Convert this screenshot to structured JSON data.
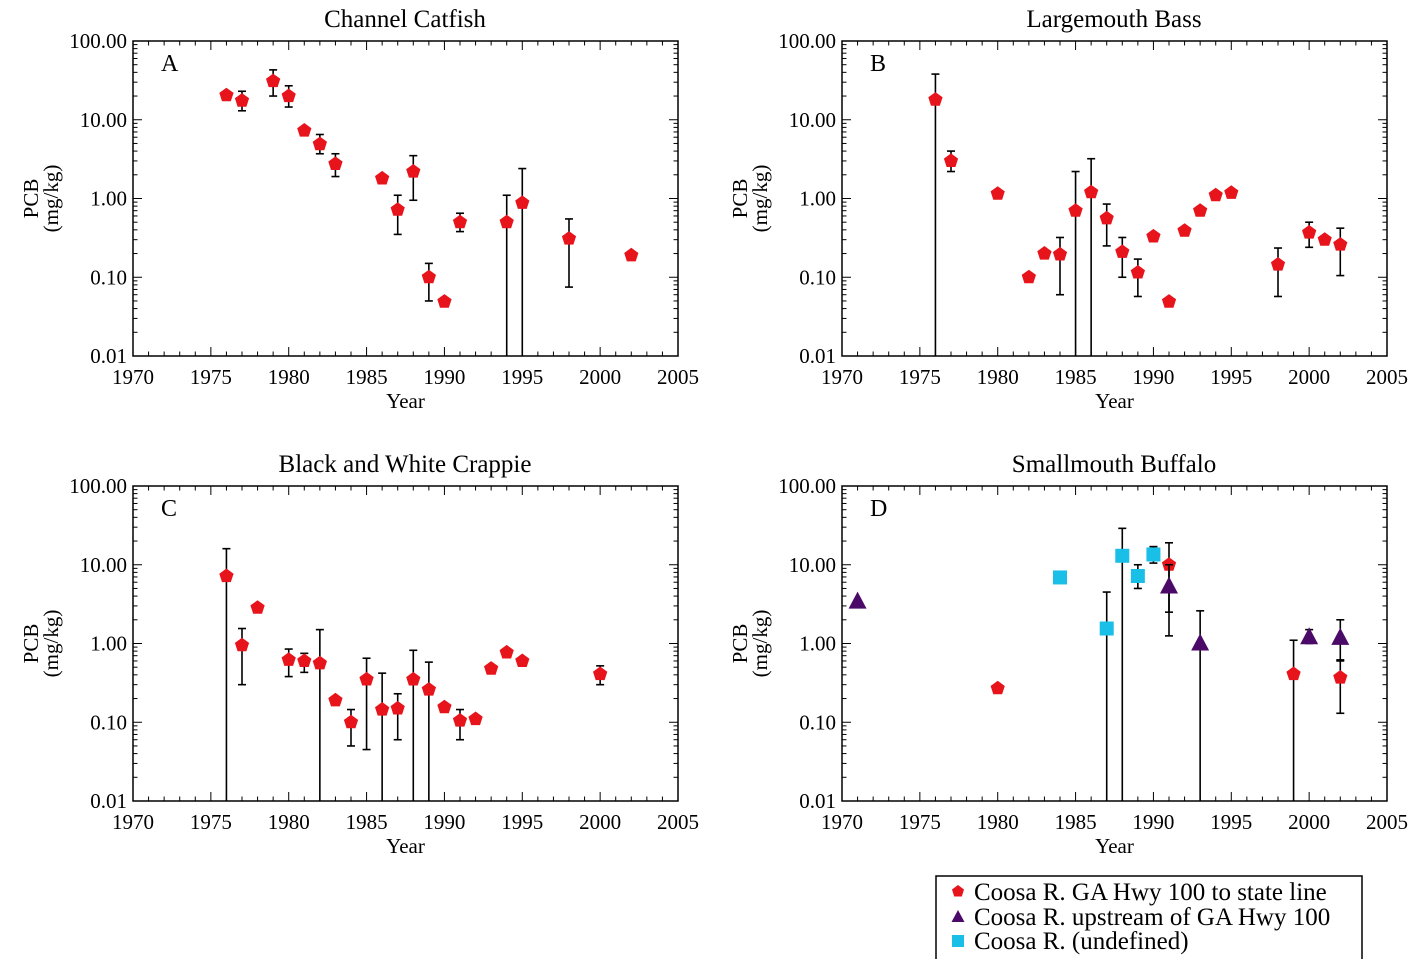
{
  "colors": {
    "series_red": "#e8141c",
    "series_purple": "#4b0a68",
    "series_cyan": "#19bfe6",
    "axes": "#000000"
  },
  "legend": {
    "placement": "bottom-right",
    "entries": [
      {
        "label": "Coosa R. GA Hwy 100 to state line",
        "marker": "pentagon",
        "color": "#e8141c"
      },
      {
        "label": "Coosa R. upstream of GA Hwy 100",
        "marker": "triangle",
        "color": "#4b0a68"
      },
      {
        "label": "Coosa R. (undefined)",
        "marker": "square",
        "color": "#19bfe6"
      }
    ]
  },
  "chart_data": [
    {
      "type": "scatter",
      "title": "Channel Catfish",
      "panel_label": "A",
      "xlabel": "Year",
      "ylabel": "PCB",
      "ylabel_units": "(mg/kg)",
      "xlim": [
        1970,
        2005
      ],
      "ylim": [
        0.01,
        100
      ],
      "y_scale": "log",
      "xticks": [
        "1970",
        "1975",
        "1980",
        "1985",
        "1990",
        "1995",
        "2000",
        "2005"
      ],
      "yticks": [
        "0.01",
        "0.10",
        "1.00",
        "10.00",
        "100.00"
      ],
      "series": [
        {
          "marker": "pentagon",
          "color": "#e8141c",
          "points": [
            {
              "x": 1976,
              "y": 20.5
            },
            {
              "x": 1977,
              "y": 17.5,
              "lo": 13,
              "hi": 23
            },
            {
              "x": 1979,
              "y": 31,
              "lo": 20,
              "hi": 43
            },
            {
              "x": 1980,
              "y": 20,
              "lo": 14.5,
              "hi": 27
            },
            {
              "x": 1981,
              "y": 7.3
            },
            {
              "x": 1982,
              "y": 4.9,
              "lo": 3.7,
              "hi": 6.5
            },
            {
              "x": 1983,
              "y": 2.75,
              "lo": 1.9,
              "hi": 3.7
            },
            {
              "x": 1986,
              "y": 1.8
            },
            {
              "x": 1987,
              "y": 0.72,
              "lo": 0.35,
              "hi": 1.1
            },
            {
              "x": 1988,
              "y": 2.2,
              "lo": 0.95,
              "hi": 3.5
            },
            {
              "x": 1989,
              "y": 0.1,
              "lo": 0.05,
              "hi": 0.15
            },
            {
              "x": 1990,
              "y": 0.049
            },
            {
              "x": 1991,
              "y": 0.5,
              "lo": 0.38,
              "hi": 0.65
            },
            {
              "x": 1994,
              "y": 0.5,
              "lo": 0.01,
              "hi": 1.1
            },
            {
              "x": 1995,
              "y": 0.88,
              "lo": 0.01,
              "hi": 2.4
            },
            {
              "x": 1998,
              "y": 0.31,
              "lo": 0.075,
              "hi": 0.55
            },
            {
              "x": 2002,
              "y": 0.19
            }
          ]
        }
      ]
    },
    {
      "type": "scatter",
      "title": "Largemouth Bass",
      "panel_label": "B",
      "xlabel": "Year",
      "ylabel": "PCB",
      "ylabel_units": "(mg/kg)",
      "xlim": [
        1970,
        2005
      ],
      "ylim": [
        0.01,
        100
      ],
      "y_scale": "log",
      "xticks": [
        "1970",
        "1975",
        "1980",
        "1985",
        "1990",
        "1995",
        "2000",
        "2005"
      ],
      "yticks": [
        "0.01",
        "0.10",
        "1.00",
        "10.00",
        "100.00"
      ],
      "series": [
        {
          "marker": "pentagon",
          "color": "#e8141c",
          "points": [
            {
              "x": 1976,
              "y": 18,
              "lo": 0.01,
              "hi": 38
            },
            {
              "x": 1977,
              "y": 3.0,
              "lo": 2.2,
              "hi": 4.0
            },
            {
              "x": 1980,
              "y": 1.15
            },
            {
              "x": 1982,
              "y": 0.1
            },
            {
              "x": 1983,
              "y": 0.2
            },
            {
              "x": 1984,
              "y": 0.195,
              "lo": 0.06,
              "hi": 0.32
            },
            {
              "x": 1985,
              "y": 0.7,
              "lo": 0.01,
              "hi": 2.2
            },
            {
              "x": 1986,
              "y": 1.2,
              "lo": 0.01,
              "hi": 3.2
            },
            {
              "x": 1987,
              "y": 0.56,
              "lo": 0.25,
              "hi": 0.85
            },
            {
              "x": 1988,
              "y": 0.21,
              "lo": 0.1,
              "hi": 0.32
            },
            {
              "x": 1989,
              "y": 0.115,
              "lo": 0.057,
              "hi": 0.17
            },
            {
              "x": 1990,
              "y": 0.33
            },
            {
              "x": 1991,
              "y": 0.049
            },
            {
              "x": 1992,
              "y": 0.39
            },
            {
              "x": 1993,
              "y": 0.7
            },
            {
              "x": 1994,
              "y": 1.1
            },
            {
              "x": 1995,
              "y": 1.18
            },
            {
              "x": 1998,
              "y": 0.145,
              "lo": 0.057,
              "hi": 0.235
            },
            {
              "x": 2000,
              "y": 0.37,
              "lo": 0.24,
              "hi": 0.5
            },
            {
              "x": 2001,
              "y": 0.3
            },
            {
              "x": 2002,
              "y": 0.26,
              "lo": 0.105,
              "hi": 0.42
            }
          ]
        }
      ]
    },
    {
      "type": "scatter",
      "title": "Black and White Crappie",
      "panel_label": "C",
      "xlabel": "Year",
      "ylabel": "PCB",
      "ylabel_units": "(mg/kg)",
      "xlim": [
        1970,
        2005
      ],
      "ylim": [
        0.01,
        100
      ],
      "y_scale": "log",
      "xticks": [
        "1970",
        "1975",
        "1980",
        "1985",
        "1990",
        "1995",
        "2000",
        "2005"
      ],
      "yticks": [
        "0.01",
        "0.10",
        "1.00",
        "10.00",
        "100.00"
      ],
      "series": [
        {
          "marker": "pentagon",
          "color": "#e8141c",
          "points": [
            {
              "x": 1976,
              "y": 7.2,
              "lo": 0.01,
              "hi": 16
            },
            {
              "x": 1977,
              "y": 0.95,
              "lo": 0.3,
              "hi": 1.55
            },
            {
              "x": 1978,
              "y": 2.85
            },
            {
              "x": 1980,
              "y": 0.62,
              "lo": 0.38,
              "hi": 0.85
            },
            {
              "x": 1981,
              "y": 0.6,
              "lo": 0.43,
              "hi": 0.75
            },
            {
              "x": 1982,
              "y": 0.56,
              "lo": 0.01,
              "hi": 1.5
            },
            {
              "x": 1983,
              "y": 0.19
            },
            {
              "x": 1984,
              "y": 0.1,
              "lo": 0.05,
              "hi": 0.145
            },
            {
              "x": 1985,
              "y": 0.35,
              "lo": 0.045,
              "hi": 0.65
            },
            {
              "x": 1986,
              "y": 0.145,
              "lo": 0.01,
              "hi": 0.42
            },
            {
              "x": 1987,
              "y": 0.15,
              "lo": 0.06,
              "hi": 0.23
            },
            {
              "x": 1988,
              "y": 0.35,
              "lo": 0.01,
              "hi": 0.82
            },
            {
              "x": 1989,
              "y": 0.26,
              "lo": 0.01,
              "hi": 0.58
            },
            {
              "x": 1990,
              "y": 0.155
            },
            {
              "x": 1991,
              "y": 0.105,
              "lo": 0.06,
              "hi": 0.145
            },
            {
              "x": 1992,
              "y": 0.11
            },
            {
              "x": 1993,
              "y": 0.48
            },
            {
              "x": 1994,
              "y": 0.77
            },
            {
              "x": 1995,
              "y": 0.6
            },
            {
              "x": 2000,
              "y": 0.41,
              "lo": 0.3,
              "hi": 0.52
            }
          ]
        }
      ]
    },
    {
      "type": "scatter",
      "title": "Smallmouth Buffalo",
      "panel_label": "D",
      "xlabel": "Year",
      "ylabel": "PCB",
      "ylabel_units": "(mg/kg)",
      "xlim": [
        1970,
        2005
      ],
      "ylim": [
        0.01,
        100
      ],
      "y_scale": "log",
      "xticks": [
        "1970",
        "1975",
        "1980",
        "1985",
        "1990",
        "1995",
        "2000",
        "2005"
      ],
      "yticks": [
        "0.01",
        "0.10",
        "1.00",
        "10.00",
        "100.00"
      ],
      "series": [
        {
          "marker": "square",
          "color": "#19bfe6",
          "points": [
            {
              "x": 1984,
              "y": 6.9
            },
            {
              "x": 1987,
              "y": 1.55,
              "lo": 0.01,
              "hi": 4.5
            },
            {
              "x": 1988,
              "y": 13,
              "lo": 0.01,
              "hi": 29
            },
            {
              "x": 1989,
              "y": 7.2,
              "lo": 5,
              "hi": 10
            },
            {
              "x": 1990,
              "y": 13.5,
              "lo": 10.5,
              "hi": 17
            }
          ]
        },
        {
          "marker": "pentagon",
          "color": "#e8141c",
          "points": [
            {
              "x": 1980,
              "y": 0.27
            },
            {
              "x": 1991,
              "y": 10,
              "lo": 2.5,
              "hi": 19
            },
            {
              "x": 1999,
              "y": 0.41,
              "lo": 0.01,
              "hi": 1.1
            },
            {
              "x": 2002,
              "y": 0.37,
              "lo": 0.13,
              "hi": 0.62
            }
          ]
        },
        {
          "marker": "triangle",
          "color": "#4b0a68",
          "points": [
            {
              "x": 1971,
              "y": 3.4
            },
            {
              "x": 1991,
              "y": 5.3,
              "lo": 1.25,
              "hi": 10
            },
            {
              "x": 1993,
              "y": 1.0,
              "lo": 0.01,
              "hi": 2.6
            },
            {
              "x": 2000,
              "y": 1.2,
              "lo": 1.0,
              "hi": 1.5
            },
            {
              "x": 2002,
              "y": 1.18,
              "lo": 0.6,
              "hi": 2.0
            }
          ]
        }
      ]
    }
  ]
}
